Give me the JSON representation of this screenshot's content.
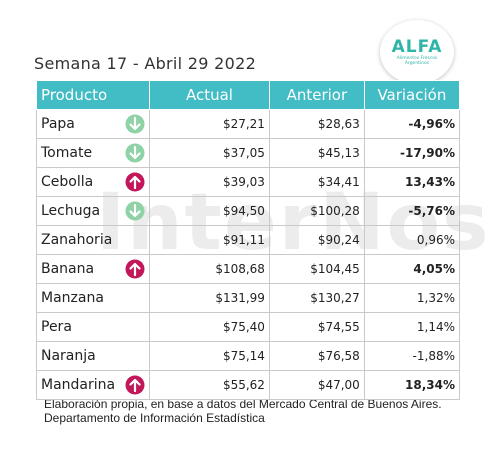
{
  "subtitle": "Semana 17 - Abril 29 2022",
  "logo": {
    "text": "ALFA",
    "subtext": "Alimentos Frescos Argentinos"
  },
  "watermark": "InterNos",
  "columns": [
    "Producto",
    "Actual",
    "Anterior",
    "Variación"
  ],
  "rows": [
    {
      "product": "Papa",
      "actual": "$27,21",
      "anterior": "$28,63",
      "variacion": "-4,96%",
      "trend": "down",
      "bold": true
    },
    {
      "product": "Tomate",
      "actual": "$37,05",
      "anterior": "$45,13",
      "variacion": "-17,90%",
      "trend": "down",
      "bold": true
    },
    {
      "product": "Cebolla",
      "actual": "$39,03",
      "anterior": "$34,41",
      "variacion": "13,43%",
      "trend": "up",
      "bold": true
    },
    {
      "product": "Lechuga",
      "actual": "$94,50",
      "anterior": "$100,28",
      "variacion": "-5,76%",
      "trend": "down",
      "bold": true
    },
    {
      "product": "Zanahoria",
      "actual": "$91,11",
      "anterior": "$90,24",
      "variacion": "0,96%",
      "trend": "none",
      "bold": false
    },
    {
      "product": "Banana",
      "actual": "$108,68",
      "anterior": "$104,45",
      "variacion": "4,05%",
      "trend": "up",
      "bold": true
    },
    {
      "product": "Manzana",
      "actual": "$131,99",
      "anterior": "$130,27",
      "variacion": "1,32%",
      "trend": "none",
      "bold": false
    },
    {
      "product": "Pera",
      "actual": "$75,40",
      "anterior": "$74,55",
      "variacion": "1,14%",
      "trend": "none",
      "bold": false
    },
    {
      "product": "Naranja",
      "actual": "$75,14",
      "anterior": "$76,58",
      "variacion": "-1,88%",
      "trend": "none",
      "bold": false
    },
    {
      "product": "Mandarina",
      "actual": "$55,62",
      "anterior": "$47,00",
      "variacion": "18,34%",
      "trend": "up",
      "bold": true
    }
  ],
  "colors": {
    "header": "#42bcc5",
    "down": "#8ed2a6",
    "up": "#c2185b"
  },
  "icons": {
    "down": "arrow-down-circle-icon",
    "up": "arrow-up-circle-icon"
  },
  "footer": {
    "line1": "Elaboración propia, en base a datos del Mercado Central de Buenos Aires.",
    "line2": "Departamento de Información Estadística"
  }
}
